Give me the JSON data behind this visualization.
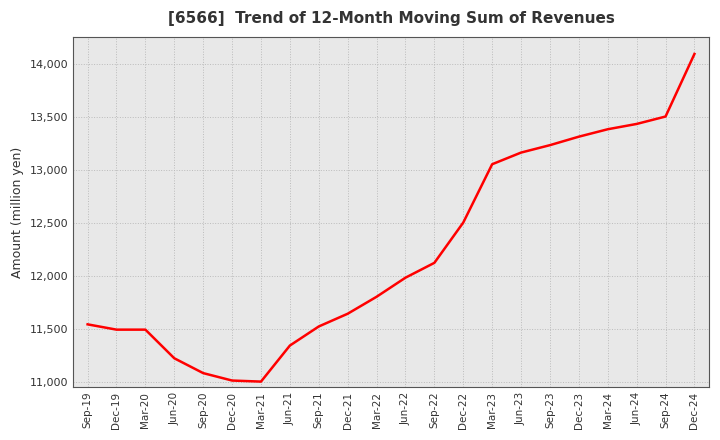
{
  "title": "[6566]  Trend of 12-Month Moving Sum of Revenues",
  "ylabel": "Amount (million yen)",
  "line_color": "#FF0000",
  "line_width": 1.8,
  "background_color": "#FFFFFF",
  "plot_bg_color": "#E8E8E8",
  "grid_color": "#BBBBBB",
  "title_color": "#333333",
  "ylim": [
    10950,
    14250
  ],
  "yticks": [
    11000,
    11500,
    12000,
    12500,
    13000,
    13500,
    14000
  ],
  "x_labels": [
    "Sep-19",
    "Dec-19",
    "Mar-20",
    "Jun-20",
    "Sep-20",
    "Dec-20",
    "Mar-21",
    "Jun-21",
    "Sep-21",
    "Dec-21",
    "Mar-22",
    "Jun-22",
    "Sep-22",
    "Dec-22",
    "Mar-23",
    "Jun-23",
    "Sep-23",
    "Dec-23",
    "Mar-24",
    "Jun-24",
    "Sep-24",
    "Dec-24"
  ],
  "values": [
    11540,
    11490,
    11490,
    11220,
    11080,
    11010,
    11000,
    11340,
    11520,
    11640,
    11800,
    11980,
    12120,
    12500,
    13050,
    13160,
    13230,
    13310,
    13380,
    13430,
    13500,
    14090
  ]
}
